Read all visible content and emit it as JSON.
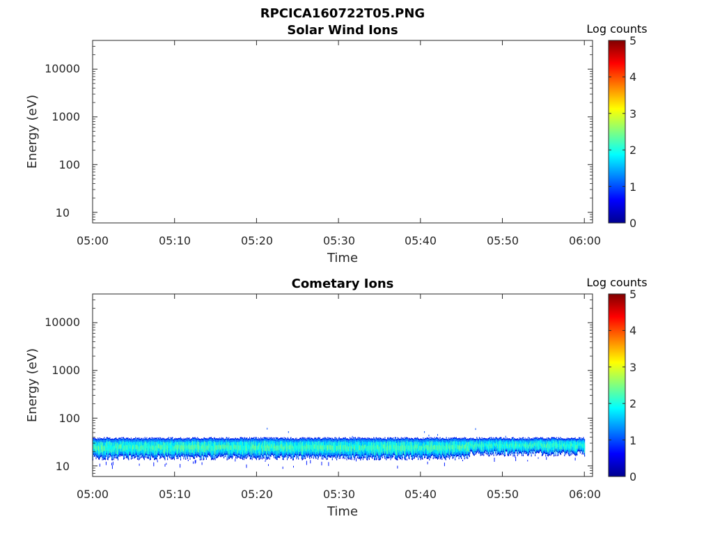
{
  "figure": {
    "title": "RPCICA160722T05.PNG"
  },
  "colormap": [
    "#00008f",
    "#0000ff",
    "#0080ff",
    "#00ffff",
    "#80ff80",
    "#ffff00",
    "#ff8000",
    "#ff0000",
    "#800000"
  ],
  "chart_data": [
    {
      "type": "heatmap",
      "title": "Solar Wind Ions",
      "xlabel": "Time",
      "ylabel": "Energy (eV)",
      "x_ticks": [
        "05:00",
        "05:10",
        "05:20",
        "05:30",
        "05:40",
        "05:50",
        "06:00"
      ],
      "xlim": [
        "05:00",
        "06:00"
      ],
      "y_scale": "log",
      "y_ticks": [
        "10",
        "100",
        "1000",
        "10000"
      ],
      "ylim": [
        6,
        40000
      ],
      "colorbar": {
        "label": "Log counts",
        "ticks": [
          "0",
          "1",
          "2",
          "3",
          "4",
          "5"
        ],
        "range": [
          0,
          5
        ]
      },
      "data": "empty"
    },
    {
      "type": "heatmap",
      "title": "Cometary Ions",
      "xlabel": "Time",
      "ylabel": "Energy (eV)",
      "x_ticks": [
        "05:00",
        "05:10",
        "05:20",
        "05:30",
        "05:40",
        "05:50",
        "06:00"
      ],
      "xlim": [
        "05:00",
        "06:00"
      ],
      "y_scale": "log",
      "y_ticks": [
        "10",
        "100",
        "1000",
        "10000"
      ],
      "ylim": [
        6,
        40000
      ],
      "colorbar": {
        "label": "Log counts",
        "ticks": [
          "0",
          "1",
          "2",
          "3",
          "4",
          "5"
        ],
        "range": [
          0,
          5
        ]
      },
      "bands": [
        {
          "time_start": "05:00",
          "time_end": "05:46",
          "energy_min": 15,
          "energy_max": 38,
          "log_counts_peak": 2.3
        },
        {
          "time_start": "05:46",
          "time_end": "06:00",
          "energy_min": 18,
          "energy_max": 38,
          "log_counts_peak": 2.2
        }
      ]
    }
  ]
}
